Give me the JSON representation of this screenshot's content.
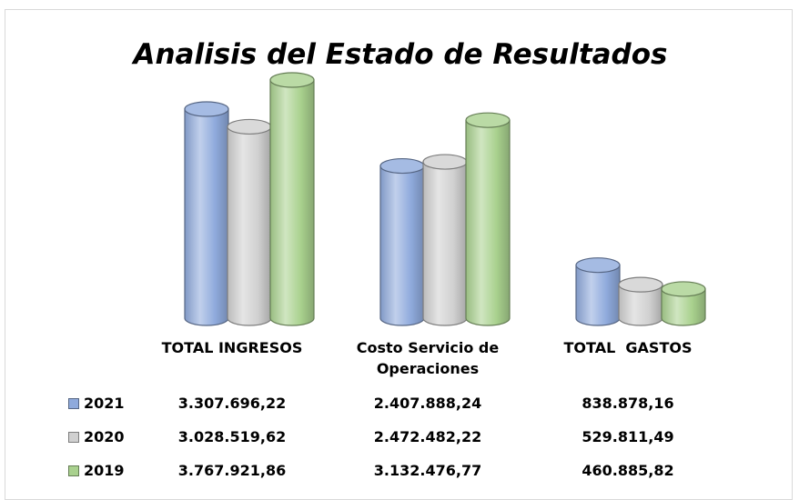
{
  "chart_data": {
    "type": "cylinder-bar",
    "title": "Analisis del Estado de Resultados",
    "categories": [
      "TOTAL INGRESOS",
      "Costo Servicio de Operaciones",
      "TOTAL  GASTOS"
    ],
    "series": [
      {
        "name": "2021",
        "color": "#8faadc",
        "values": [
          3307696.22,
          2407888.24,
          838878.16
        ],
        "value_labels": [
          "3.307.696,22",
          "2.407.888,24",
          "838.878,16"
        ]
      },
      {
        "name": "2020",
        "color": "#d0d0d0",
        "values": [
          3028519.62,
          2472482.22,
          529811.49
        ],
        "value_labels": [
          "3.028.519,62",
          "2.472.482,22",
          "529.811,49"
        ]
      },
      {
        "name": "2019",
        "color": "#a9d18e",
        "values": [
          3767921.86,
          3132476.77,
          460885.82
        ],
        "value_labels": [
          "3.767.921,86",
          "3.132.476,77",
          "460.885,82"
        ]
      }
    ]
  }
}
